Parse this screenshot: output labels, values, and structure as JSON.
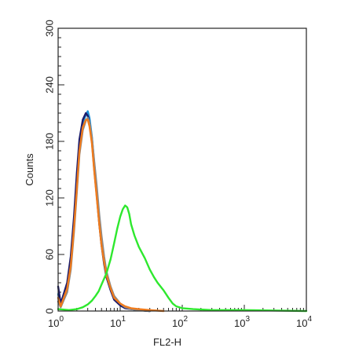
{
  "chart_data": {
    "type": "line",
    "title": "",
    "xlabel": "FL2-H",
    "ylabel": "Counts",
    "xscale": "log",
    "xlim": [
      1,
      10000
    ],
    "ylim": [
      0,
      300
    ],
    "grid": false,
    "legend": "none",
    "y_ticks": [
      {
        "value": 0,
        "label": "0"
      },
      {
        "value": 60,
        "label": "60"
      },
      {
        "value": 120,
        "label": "120"
      },
      {
        "value": 180,
        "label": "180"
      },
      {
        "value": 240,
        "label": "240"
      },
      {
        "value": 300,
        "label": "300"
      }
    ],
    "x_ticks": [
      {
        "value": 1,
        "base": "10",
        "exp": "0"
      },
      {
        "value": 10,
        "base": "10",
        "exp": "1"
      },
      {
        "value": 100,
        "base": "10",
        "exp": "2"
      },
      {
        "value": 1000,
        "base": "10",
        "exp": "3"
      },
      {
        "value": 10000,
        "base": "10",
        "exp": "4"
      }
    ],
    "series": [
      {
        "color": "#1a8fd6",
        "x": [
          1.0,
          1.1,
          1.2,
          1.4,
          1.6,
          1.8,
          2.0,
          2.2,
          2.5,
          2.8,
          3.0,
          3.2,
          3.5,
          3.8,
          4.2,
          4.6,
          5.0,
          5.5,
          6.0,
          7.0,
          8.0,
          10.0,
          12.0,
          15.0,
          20.0,
          30.0
        ],
        "values": [
          18,
          6,
          14,
          28,
          55,
          95,
          140,
          178,
          200,
          208,
          212,
          205,
          185,
          158,
          128,
          98,
          74,
          54,
          40,
          24,
          14,
          7,
          4,
          2,
          1,
          0
        ]
      },
      {
        "color": "#1c1c6b",
        "x": [
          1.0,
          1.1,
          1.2,
          1.4,
          1.6,
          1.8,
          2.0,
          2.2,
          2.5,
          2.8,
          3.0,
          3.2,
          3.5,
          3.8,
          4.2,
          4.6,
          5.0,
          5.5,
          6.0,
          7.0,
          8.0,
          10.0,
          12.0,
          15.0,
          20.0,
          30.0
        ],
        "values": [
          26,
          8,
          16,
          30,
          58,
          100,
          146,
          182,
          203,
          210,
          207,
          200,
          180,
          152,
          122,
          92,
          70,
          50,
          36,
          22,
          12,
          6,
          3,
          2,
          1,
          0
        ]
      },
      {
        "color": "#8a8a8a",
        "x": [
          1.0,
          1.1,
          1.2,
          1.4,
          1.6,
          1.8,
          2.0,
          2.2,
          2.5,
          2.8,
          3.0,
          3.2,
          3.5,
          3.8,
          4.2,
          4.6,
          5.0,
          5.5,
          6.0,
          7.0,
          8.0,
          10.0,
          12.0,
          15.0,
          20.0,
          30.0
        ],
        "values": [
          10,
          4,
          10,
          20,
          44,
          84,
          126,
          166,
          192,
          202,
          205,
          200,
          184,
          160,
          132,
          102,
          80,
          58,
          42,
          26,
          16,
          8,
          4,
          2,
          1,
          0
        ]
      },
      {
        "color": "#f07b1c",
        "x": [
          1.0,
          1.1,
          1.2,
          1.4,
          1.6,
          1.8,
          2.0,
          2.2,
          2.5,
          2.8,
          3.0,
          3.2,
          3.5,
          3.8,
          4.2,
          4.6,
          5.0,
          5.5,
          6.0,
          7.0,
          8.0,
          10.0,
          12.0,
          15.0,
          20.0,
          30.0,
          50.0
        ],
        "values": [
          14,
          5,
          12,
          24,
          48,
          88,
          130,
          170,
          195,
          203,
          203,
          196,
          178,
          150,
          120,
          92,
          70,
          52,
          38,
          24,
          14,
          8,
          5,
          3,
          2,
          1,
          0
        ]
      },
      {
        "color": "#2ee82e",
        "x": [
          1.0,
          1.5,
          2.0,
          2.5,
          3.0,
          3.5,
          4.0,
          4.5,
          5.0,
          6.0,
          7.0,
          8.0,
          9.0,
          10.0,
          11.0,
          12.0,
          13.0,
          14.0,
          15.0,
          17.0,
          20.0,
          25.0,
          30.0,
          35.0,
          40.0,
          50.0,
          60.0,
          70.0,
          80.0,
          100.0,
          150.0,
          300.0,
          1000.0,
          10000.0
        ],
        "values": [
          2,
          1,
          2,
          4,
          7,
          11,
          16,
          21,
          28,
          40,
          55,
          72,
          88,
          100,
          108,
          112,
          110,
          103,
          92,
          80,
          68,
          56,
          44,
          36,
          30,
          22,
          14,
          8,
          5,
          3,
          2,
          1,
          1,
          0
        ]
      }
    ]
  }
}
